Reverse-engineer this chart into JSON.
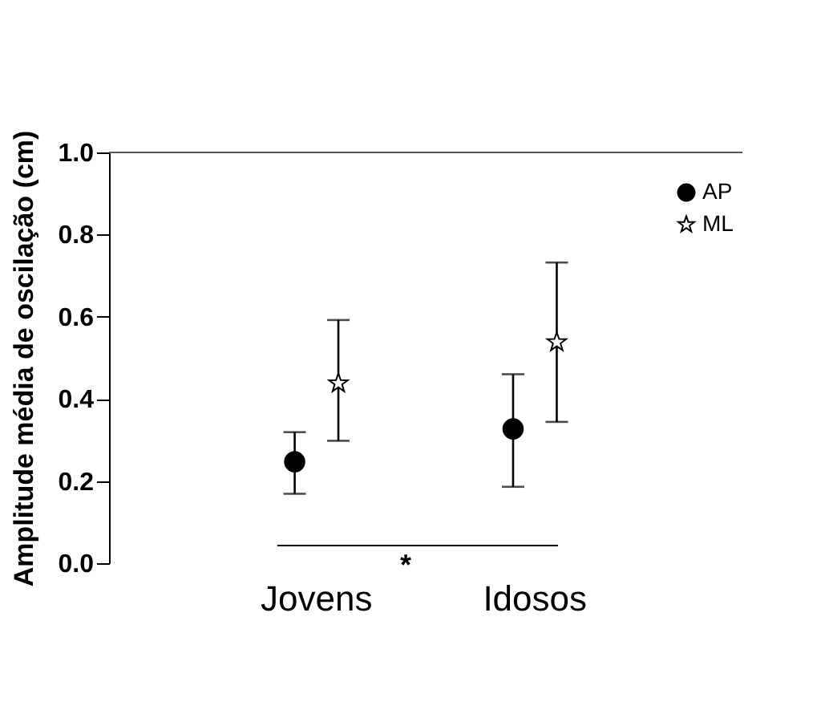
{
  "chart_data": {
    "type": "scatter",
    "ylabel": "Amplitude média de oscilação (cm)",
    "categories": [
      "Jovens",
      "Idosos"
    ],
    "series": [
      {
        "name": "AP",
        "color": "#000000",
        "marker": "circle",
        "values": [
          0.247,
          0.327
        ],
        "errors": [
          [
            0.169,
            0.319
          ],
          [
            0.186,
            0.46
          ]
        ]
      },
      {
        "name": "ML",
        "color": "#ffffff",
        "marker": "star",
        "values": [
          0.438,
          0.538
        ],
        "errors": [
          [
            0.298,
            0.592
          ],
          [
            0.344,
            0.732
          ]
        ]
      }
    ],
    "ylim": [
      0,
      1
    ],
    "yticks": [
      {
        "value": 0,
        "label": "0.0"
      },
      {
        "value": 0.2,
        "label": "0.2"
      },
      {
        "value": 0.4,
        "label": "0.4"
      },
      {
        "value": 0.6,
        "label": "0.6"
      },
      {
        "value": 0.8,
        "label": "0.8"
      },
      {
        "value": 1,
        "label": "1.0"
      }
    ],
    "annotations": [
      "*"
    ],
    "legend": "top right",
    "grid": false
  }
}
